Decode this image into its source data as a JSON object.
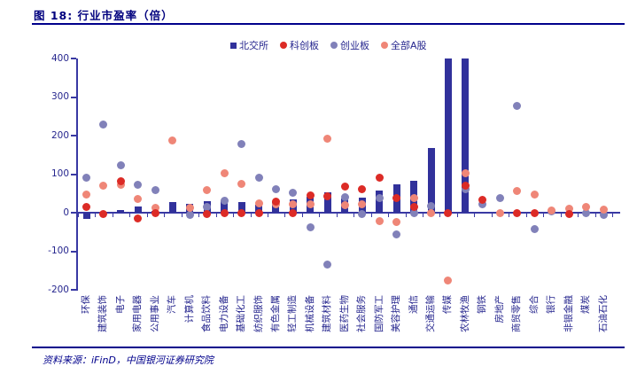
{
  "title": "图 18: 行业市盈率（倍）",
  "source": "资料来源：iFinD，中国银河证券研究院",
  "colors": {
    "title_navy": "#00007E",
    "rule_navy": "#00008B",
    "axis_navy": "#3939A3",
    "label_navy": "#26268E",
    "bar_navy": "#31319B",
    "star_red": "#DC2B26",
    "chinext_purple": "#8181B9",
    "alla_salmon": "#EF8677"
  },
  "legend": [
    {
      "label": "北交所",
      "marker": "square",
      "color": "#31319B"
    },
    {
      "label": "科创板",
      "marker": "circle",
      "color": "#DC2B26"
    },
    {
      "label": "创业板",
      "marker": "circle",
      "color": "#8181B9"
    },
    {
      "label": "全部A股",
      "marker": "circle",
      "color": "#EF8677"
    }
  ],
  "chart_data": {
    "type": "bar",
    "subtype": "bar + scatter combo",
    "title": "图 18: 行业市盈率（倍）",
    "xlabel": "",
    "ylabel": "",
    "ylim": [
      -200,
      400
    ],
    "yticks": [
      400,
      300,
      200,
      100,
      0,
      -100,
      -200
    ],
    "grid": false,
    "legend_position": "top",
    "clipped_bars": [
      "传媒",
      "农林牧渔"
    ],
    "categories": [
      "环保",
      "建筑装饰",
      "电子",
      "家用电器",
      "公用事业",
      "汽车",
      "计算机",
      "食品饮料",
      "电力设备",
      "基础化工",
      "纺织服饰",
      "有色金属",
      "轻工制造",
      "机械设备",
      "建筑材料",
      "医药生物",
      "社会服务",
      "国防军工",
      "美容护理",
      "通信",
      "交通运输",
      "传媒",
      "农林牧渔",
      "钢铁",
      "房地产",
      "商贸零售",
      "综合",
      "银行",
      "非银金融",
      "煤炭",
      "石油石化"
    ],
    "series": [
      {
        "name": "北交所",
        "type": "bar",
        "color": "#31319B",
        "values": [
          -17,
          2,
          8,
          17,
          5,
          27,
          24,
          30,
          32,
          27,
          20,
          30,
          35,
          42,
          53,
          36,
          38,
          58,
          73,
          83,
          167,
          400,
          400,
          null,
          null,
          null,
          null,
          null,
          null,
          null,
          null
        ]
      },
      {
        "name": "科创板",
        "type": "scatter",
        "color": "#DC2B26",
        "values": [
          15,
          -3,
          81,
          -16,
          -2,
          null,
          null,
          -3,
          0,
          0,
          -1,
          28,
          -2,
          45,
          42,
          67,
          60,
          90,
          38,
          16,
          null,
          0,
          71,
          33,
          null,
          -1,
          -1,
          null,
          -4,
          null,
          null
        ]
      },
      {
        "name": "创业板",
        "type": "scatter",
        "color": "#8181B9",
        "values": [
          90,
          228,
          122,
          73,
          58,
          null,
          -6,
          15,
          30,
          178,
          90,
          62,
          52,
          -38,
          -134,
          40,
          -4,
          38,
          -57,
          -2,
          18,
          null,
          62,
          21,
          37,
          278,
          -42,
          3,
          null,
          -2,
          -5
        ]
      },
      {
        "name": "全部A股",
        "type": "scatter",
        "color": "#EF8677",
        "values": [
          47,
          70,
          72,
          36,
          12,
          188,
          13,
          59,
          103,
          74,
          24,
          22,
          21,
          21,
          193,
          19,
          21,
          -21,
          -23,
          39,
          -2,
          -175,
          103,
          null,
          -1,
          57,
          48,
          6,
          10,
          15,
          9
        ]
      }
    ]
  }
}
